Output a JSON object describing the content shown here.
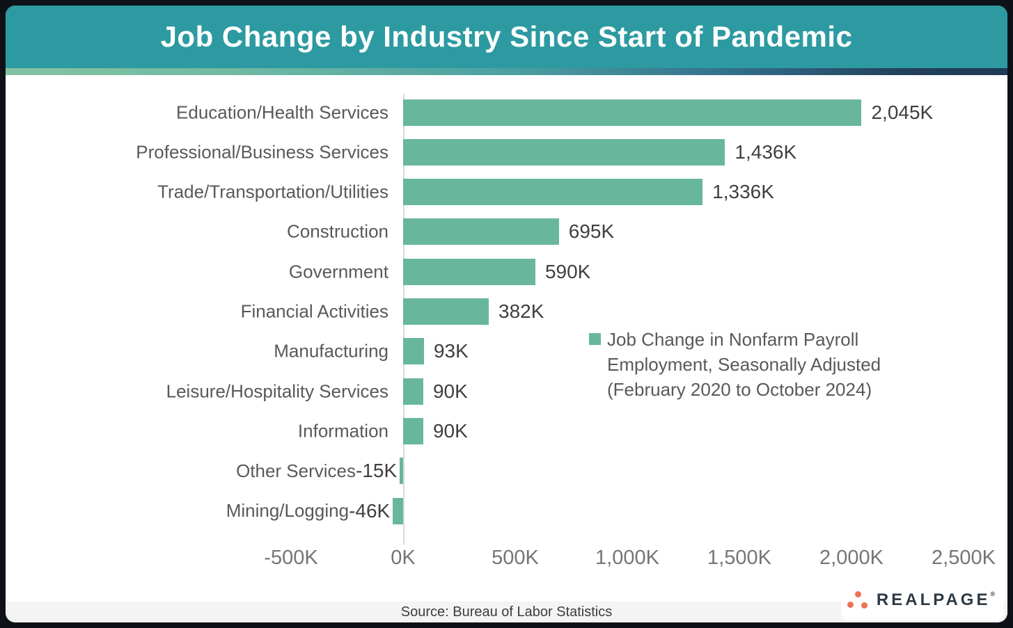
{
  "header": {
    "title": "Job Change by Industry Since Start of Pandemic"
  },
  "chart_data": {
    "type": "bar",
    "orientation": "horizontal",
    "title": "Job Change by Industry Since Start of Pandemic",
    "categories": [
      "Education/Health Services",
      "Professional/Business Services",
      "Trade/Transportation/Utilities",
      "Construction",
      "Government",
      "Financial Activities",
      "Manufacturing",
      "Leisure/Hospitality Services",
      "Information",
      "Other Services",
      "Mining/Logging"
    ],
    "values": [
      2045,
      1436,
      1336,
      695,
      590,
      382,
      93,
      90,
      90,
      -15,
      -46
    ],
    "value_labels": [
      "2,045K",
      "1,436K",
      "1,336K",
      "695K",
      "590K",
      "382K",
      "93K",
      "90K",
      "90K",
      "-15K",
      "-46K"
    ],
    "x_ticks": [
      "-500K",
      "0K",
      "500K",
      "1,000K",
      "1,500K",
      "2,000K",
      "2,500K"
    ],
    "x_tick_values": [
      -500,
      0,
      500,
      1000,
      1500,
      2000,
      2500
    ],
    "xlim": [
      -500,
      2500
    ],
    "grid": false,
    "legend_position": "center-right",
    "legend_label": "Job Change in Nonfarm Payroll Employment, Seasonally Adjusted (February 2020 to October 2024)",
    "bar_color": "#68b79c"
  },
  "footer": {
    "source": "Source: Bureau of Labor Statistics"
  },
  "logo": {
    "word": "REALPAGE",
    "mark": "®",
    "dot_color": "#ed7152"
  }
}
